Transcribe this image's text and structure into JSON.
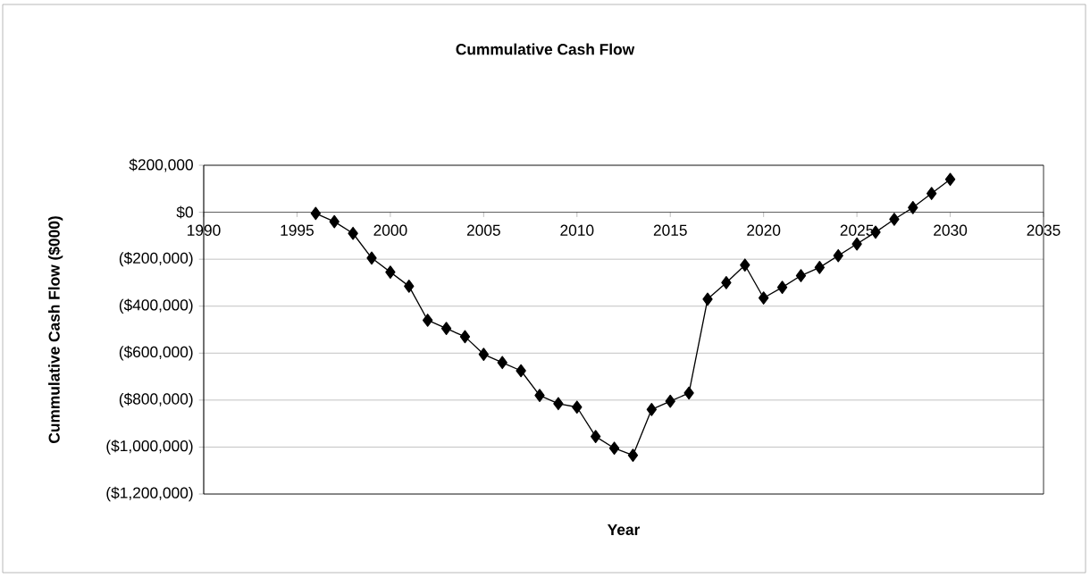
{
  "chart_data": {
    "type": "line",
    "title": "Cummulative Cash Flow",
    "xlabel": "Year",
    "ylabel": "Cummulative Cash Flow ($000)",
    "x": [
      1996,
      1997,
      1998,
      1999,
      2000,
      2001,
      2002,
      2003,
      2004,
      2005,
      2006,
      2007,
      2008,
      2009,
      2010,
      2011,
      2012,
      2013,
      2014,
      2015,
      2016,
      2017,
      2018,
      2019,
      2020,
      2021,
      2022,
      2023,
      2024,
      2025,
      2026,
      2027,
      2028,
      2029,
      2030
    ],
    "values": [
      -5000,
      -40000,
      -90000,
      -195000,
      -255000,
      -315000,
      -460000,
      -495000,
      -530000,
      -605000,
      -640000,
      -675000,
      -780000,
      -815000,
      -830000,
      -955000,
      -1005000,
      -1035000,
      -840000,
      -805000,
      -770000,
      -370000,
      -300000,
      -225000,
      -365000,
      -320000,
      -270000,
      -235000,
      -185000,
      -135000,
      -85000,
      -30000,
      20000,
      80000,
      140000
    ],
    "color": "#000000",
    "xlim": [
      1990,
      2035
    ],
    "ylim": [
      -1200000,
      200000
    ],
    "xticks": [
      1990,
      1995,
      2000,
      2005,
      2010,
      2015,
      2020,
      2025,
      2030,
      2035
    ],
    "yticks": [
      {
        "value": -1200000,
        "label": "($1,200,000)"
      },
      {
        "value": -1000000,
        "label": "($1,000,000)"
      },
      {
        "value": -800000,
        "label": "($800,000)"
      },
      {
        "value": -600000,
        "label": "($600,000)"
      },
      {
        "value": -400000,
        "label": "($400,000)"
      },
      {
        "value": -200000,
        "label": "($200,000)"
      },
      {
        "value": 0,
        "label": "$0"
      },
      {
        "value": 200000,
        "label": "$200,000"
      }
    ],
    "grid": "y",
    "marker": "diamond",
    "line_style": "solid"
  }
}
